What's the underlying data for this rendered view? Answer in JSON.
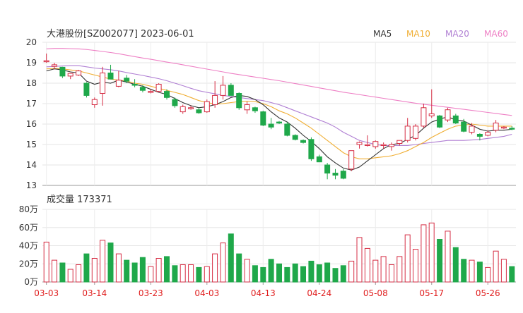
{
  "chart_data": [
    {
      "type": "candlestick",
      "title": "大港股份[SZ002077] 2023-06-01",
      "ylim": [
        13,
        20
      ],
      "yticks": [
        "20",
        "19",
        "18",
        "17",
        "16",
        "15",
        "14",
        "13"
      ],
      "legend": [
        {
          "name": "MA5",
          "color": "#333333"
        },
        {
          "name": "MA10",
          "color": "#f0ae33"
        },
        {
          "name": "MA20",
          "color": "#b07fd3"
        },
        {
          "name": "MA60",
          "color": "#ee80c5"
        }
      ],
      "candles": [
        [
          19.05,
          19.45,
          19.0,
          19.1
        ],
        [
          18.82,
          19.0,
          18.68,
          18.9
        ],
        [
          18.78,
          18.8,
          18.25,
          18.35
        ],
        [
          18.35,
          18.5,
          18.2,
          18.48
        ],
        [
          18.4,
          18.65,
          18.35,
          18.6
        ],
        [
          18.0,
          18.05,
          17.3,
          17.4
        ],
        [
          16.95,
          17.3,
          16.8,
          17.2
        ],
        [
          17.5,
          18.8,
          16.9,
          18.5
        ],
        [
          18.5,
          18.9,
          18.2,
          18.2
        ],
        [
          17.85,
          18.6,
          17.8,
          18.15
        ],
        [
          18.25,
          18.4,
          18.0,
          18.1
        ],
        [
          17.95,
          18.2,
          17.8,
          17.9
        ],
        [
          17.8,
          17.9,
          17.55,
          17.65
        ],
        [
          17.55,
          17.7,
          17.5,
          17.6
        ],
        [
          17.6,
          18.0,
          17.55,
          17.95
        ],
        [
          17.6,
          17.7,
          17.2,
          17.3
        ],
        [
          17.2,
          17.3,
          16.8,
          16.9
        ],
        [
          16.6,
          16.95,
          16.5,
          16.85
        ],
        [
          16.75,
          16.9,
          16.7,
          16.8
        ],
        [
          16.7,
          16.8,
          16.5,
          16.55
        ],
        [
          16.6,
          17.2,
          16.55,
          17.1
        ],
        [
          16.95,
          18.1,
          16.8,
          17.4
        ],
        [
          17.4,
          18.35,
          17.2,
          17.9
        ],
        [
          17.9,
          18.0,
          17.4,
          17.4
        ],
        [
          17.5,
          17.55,
          16.7,
          16.8
        ],
        [
          16.7,
          17.1,
          16.5,
          16.95
        ],
        [
          16.8,
          16.85,
          16.55,
          16.65
        ],
        [
          16.6,
          16.65,
          15.9,
          15.95
        ],
        [
          16.0,
          16.3,
          15.75,
          15.85
        ],
        [
          16.1,
          16.15,
          16.0,
          16.05
        ],
        [
          16.0,
          16.1,
          15.4,
          15.45
        ],
        [
          15.45,
          15.5,
          15.2,
          15.25
        ],
        [
          15.2,
          15.25,
          15.05,
          15.1
        ],
        [
          15.25,
          15.35,
          14.2,
          14.3
        ],
        [
          14.4,
          14.5,
          14.15,
          14.15
        ],
        [
          14.0,
          14.1,
          13.3,
          13.6
        ],
        [
          13.6,
          13.8,
          13.3,
          13.5
        ],
        [
          13.7,
          13.8,
          13.3,
          13.35
        ],
        [
          13.8,
          14.7,
          13.7,
          14.7
        ],
        [
          15.0,
          15.15,
          14.8,
          15.1
        ],
        [
          14.95,
          15.45,
          14.9,
          15.0
        ],
        [
          14.9,
          15.2,
          14.8,
          15.15
        ],
        [
          14.95,
          15.1,
          14.8,
          15.0
        ],
        [
          14.9,
          15.1,
          14.7,
          15.0
        ],
        [
          15.05,
          15.2,
          14.95,
          15.2
        ],
        [
          15.2,
          16.3,
          15.1,
          15.9
        ],
        [
          15.3,
          16.0,
          15.2,
          15.9
        ],
        [
          15.9,
          17.0,
          15.8,
          16.8
        ],
        [
          16.4,
          17.7,
          16.3,
          16.5
        ],
        [
          16.4,
          16.45,
          15.8,
          15.85
        ],
        [
          16.2,
          16.8,
          16.1,
          16.7
        ],
        [
          16.4,
          16.5,
          16.0,
          16.05
        ],
        [
          16.1,
          16.25,
          15.6,
          15.65
        ],
        [
          15.6,
          16.05,
          15.5,
          15.9
        ],
        [
          15.5,
          15.55,
          15.2,
          15.4
        ],
        [
          15.45,
          15.7,
          15.4,
          15.6
        ],
        [
          15.7,
          16.2,
          15.6,
          16.05
        ],
        [
          15.8,
          15.9,
          15.75,
          15.85
        ],
        [
          15.8,
          15.9,
          15.7,
          15.75
        ]
      ],
      "ma5": [
        18.6,
        18.7,
        18.65,
        18.55,
        18.5,
        18.1,
        17.95,
        18.05,
        18.0,
        18.15,
        18.05,
        17.95,
        17.85,
        17.7,
        17.55,
        17.45,
        17.25,
        17.05,
        16.9,
        16.8,
        16.85,
        16.95,
        17.1,
        17.3,
        17.4,
        17.35,
        17.2,
        16.95,
        16.6,
        16.3,
        16.1,
        15.8,
        15.45,
        15.15,
        14.8,
        14.4,
        14.1,
        13.85,
        13.75,
        13.9,
        14.2,
        14.5,
        14.8,
        15.0,
        15.05,
        15.25,
        15.45,
        15.8,
        16.1,
        16.25,
        16.35,
        16.2,
        16.15,
        15.95,
        15.75,
        15.65,
        15.7,
        15.7,
        15.75
      ],
      "ma10": [
        18.7,
        18.72,
        18.7,
        18.65,
        18.6,
        18.5,
        18.4,
        18.3,
        18.2,
        18.15,
        18.1,
        18.0,
        17.95,
        17.85,
        17.75,
        17.65,
        17.55,
        17.45,
        17.3,
        17.15,
        17.05,
        16.98,
        17.0,
        17.05,
        17.1,
        17.12,
        17.1,
        17.0,
        16.85,
        16.65,
        16.5,
        16.3,
        16.05,
        15.8,
        15.5,
        15.2,
        14.9,
        14.6,
        14.4,
        14.3,
        14.3,
        14.35,
        14.4,
        14.45,
        14.55,
        14.7,
        14.9,
        15.1,
        15.35,
        15.55,
        15.75,
        15.9,
        15.95,
        16.0,
        15.95,
        15.9,
        15.9,
        15.9,
        15.9
      ],
      "ma20": [
        18.8,
        18.82,
        18.84,
        18.86,
        18.86,
        18.8,
        18.74,
        18.7,
        18.66,
        18.6,
        18.52,
        18.45,
        18.38,
        18.3,
        18.22,
        18.12,
        18.0,
        17.88,
        17.75,
        17.63,
        17.55,
        17.48,
        17.4,
        17.35,
        17.3,
        17.25,
        17.2,
        17.15,
        17.05,
        16.95,
        16.8,
        16.65,
        16.5,
        16.35,
        16.2,
        16.05,
        15.85,
        15.6,
        15.4,
        15.2,
        15.1,
        15.0,
        14.95,
        14.95,
        14.95,
        14.95,
        15.0,
        15.05,
        15.1,
        15.15,
        15.2,
        15.2,
        15.2,
        15.22,
        15.25,
        15.3,
        15.35,
        15.4,
        15.5
      ],
      "ma60": [
        19.68,
        19.7,
        19.7,
        19.69,
        19.68,
        19.65,
        19.6,
        19.55,
        19.5,
        19.44,
        19.37,
        19.3,
        19.23,
        19.17,
        19.1,
        19.03,
        18.97,
        18.9,
        18.83,
        18.76,
        18.69,
        18.62,
        18.55,
        18.48,
        18.42,
        18.36,
        18.3,
        18.24,
        18.18,
        18.12,
        18.05,
        17.98,
        17.91,
        17.84,
        17.77,
        17.7,
        17.63,
        17.56,
        17.5,
        17.44,
        17.38,
        17.32,
        17.26,
        17.2,
        17.14,
        17.08,
        17.02,
        16.97,
        16.92,
        16.87,
        16.82,
        16.77,
        16.72,
        16.67,
        16.62,
        16.57,
        16.52,
        16.47,
        16.42
      ]
    },
    {
      "type": "bar",
      "title": "成交量 173371",
      "ylim": [
        0,
        80
      ],
      "yticks": [
        "80万",
        "60万",
        "40万",
        "20万",
        "0万"
      ],
      "x_ticks": [
        "03-03",
        "03-14",
        "03-23",
        "04-03",
        "04-13",
        "04-24",
        "05-08",
        "05-17",
        "05-26"
      ],
      "x_tick_index": [
        0,
        6,
        13,
        20,
        27,
        34,
        41,
        48,
        55
      ],
      "values": [
        44,
        24,
        21,
        14,
        19,
        31,
        26,
        46,
        43,
        31,
        24,
        21,
        27,
        17,
        26,
        28,
        18,
        19,
        19,
        16,
        17,
        31,
        43,
        53,
        31,
        25,
        18,
        16,
        25,
        20,
        16,
        20,
        17,
        23,
        19,
        21,
        15,
        18,
        23,
        49,
        37,
        24,
        28,
        19,
        28,
        52,
        36,
        63,
        65,
        47,
        56,
        38,
        25,
        24,
        22,
        16,
        34,
        25,
        17
      ],
      "up_color": "#d62d44",
      "down_color": "#1fa84a"
    }
  ]
}
